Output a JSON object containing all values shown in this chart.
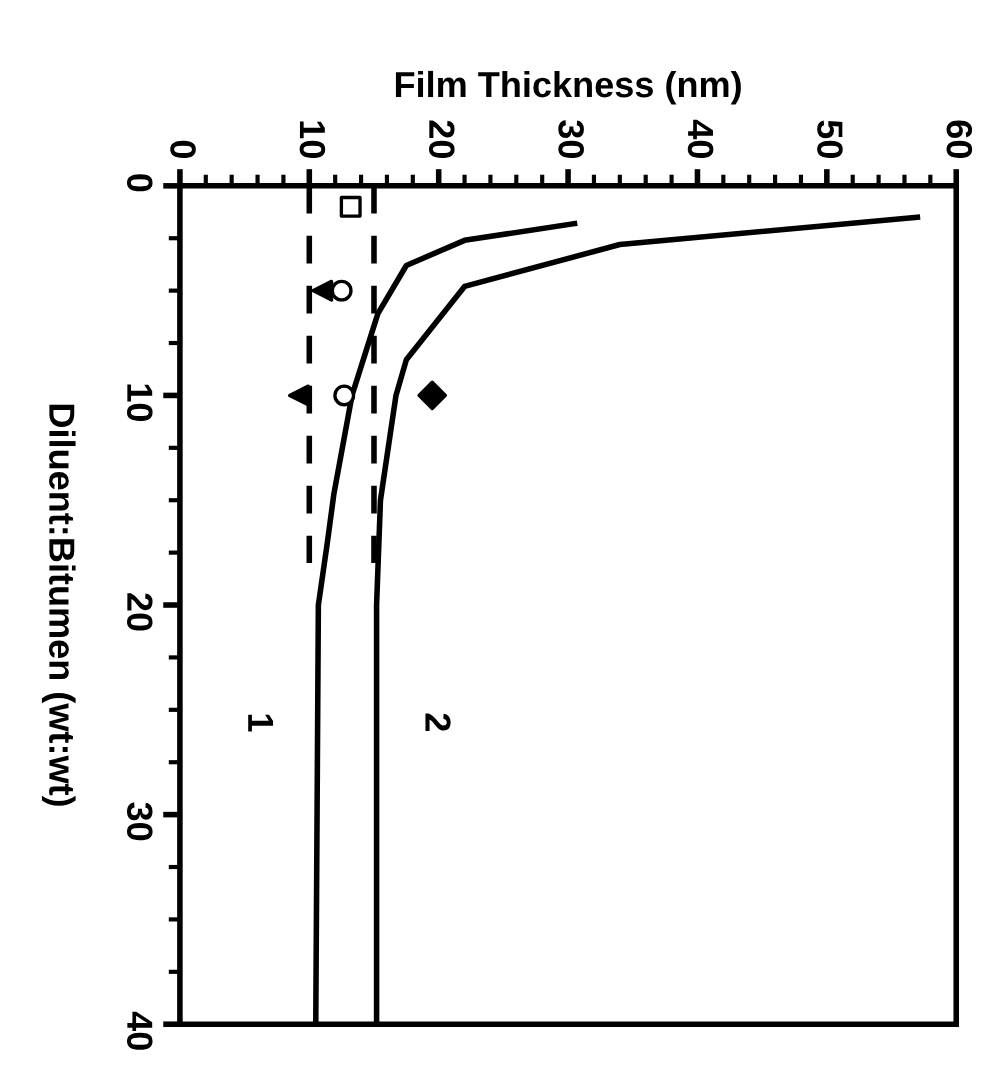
{
  "chart_data": {
    "type": "line",
    "xlabel": "Film Thickness (nm)",
    "ylabel": "Diluent:Bitumen (wt:wt)",
    "xlim": [
      0,
      60
    ],
    "ylim": [
      40,
      0
    ],
    "xticks": [
      0,
      {
        "value": 2,
        "label": null
      },
      {
        "value": 4,
        "label": null
      },
      {
        "value": 6,
        "label": null
      },
      {
        "value": 8,
        "label": null
      },
      10,
      {
        "value": 12,
        "label": null
      },
      {
        "value": 14,
        "label": null
      },
      {
        "value": 16,
        "label": null
      },
      {
        "value": 18,
        "label": null
      },
      20,
      {
        "value": 22,
        "label": null
      },
      {
        "value": 24,
        "label": null
      },
      {
        "value": 26,
        "label": null
      },
      {
        "value": 28,
        "label": null
      },
      30,
      {
        "value": 32,
        "label": null
      },
      {
        "value": 34,
        "label": null
      },
      {
        "value": 36,
        "label": null
      },
      {
        "value": 38,
        "label": null
      },
      40,
      {
        "value": 42,
        "label": null
      },
      {
        "value": 44,
        "label": null
      },
      {
        "value": 46,
        "label": null
      },
      {
        "value": 48,
        "label": null
      },
      50,
      {
        "value": 52,
        "label": null
      },
      {
        "value": 54,
        "label": null
      },
      {
        "value": 56,
        "label": null
      },
      {
        "value": 58,
        "label": null
      },
      60
    ],
    "yticks": [
      0,
      {
        "value": 2.5,
        "label": null
      },
      {
        "value": 5,
        "label": null
      },
      {
        "value": 7.5,
        "label": null
      },
      10,
      {
        "value": 12.5,
        "label": null
      },
      {
        "value": 15,
        "label": null
      },
      {
        "value": 17.5,
        "label": null
      },
      20,
      {
        "value": 22.5,
        "label": null
      },
      {
        "value": 25,
        "label": null
      },
      {
        "value": 27.5,
        "label": null
      },
      30,
      {
        "value": 32.5,
        "label": null
      },
      {
        "value": 35,
        "label": null
      },
      {
        "value": 37.5,
        "label": null
      },
      40
    ],
    "grid": false,
    "legend": false,
    "series": [
      {
        "name": "1",
        "color": "#000000",
        "line_style": "solid",
        "marker": "none",
        "x": [
          30.5,
          22,
          17.5,
          15.3,
          13.3,
          11.9,
          11.4,
          10.7,
          10.5
        ],
        "values": [
          1.8,
          2.6,
          3.8,
          6.1,
          10,
          14.7,
          17,
          20,
          40
        ]
      },
      {
        "name": "2",
        "color": "#000000",
        "line_style": "solid",
        "marker": "none",
        "x": [
          57,
          34,
          22,
          17.5,
          16.7,
          15.5,
          15.2,
          15.2
        ],
        "values": [
          1.5,
          2.8,
          4.8,
          8.3,
          10,
          15,
          20,
          40
        ]
      },
      {
        "color": "#000000",
        "line_style": "dashed",
        "marker": "none",
        "x": [
          10,
          10
        ],
        "values": [
          0,
          18
        ]
      },
      {
        "color": "#000000",
        "line_style": "dashed",
        "marker": "none",
        "x": [
          15,
          15
        ],
        "values": [
          0,
          18
        ]
      },
      {
        "type": "scatter",
        "color": "#000000",
        "marker": "square",
        "x": [
          13.2
        ],
        "values": [
          1
        ]
      },
      {
        "type": "scatter",
        "color": "#000000",
        "marker": "triangle",
        "x": [
          11,
          9.2
        ],
        "values": [
          5,
          10
        ]
      },
      {
        "type": "scatter",
        "color": "#000000",
        "marker": "circle",
        "x": [
          12.5,
          12.7
        ],
        "values": [
          5,
          10
        ]
      },
      {
        "type": "scatter",
        "color": "#000000",
        "marker": "diamond",
        "x": [
          19.5
        ],
        "values": [
          10
        ]
      }
    ]
  }
}
